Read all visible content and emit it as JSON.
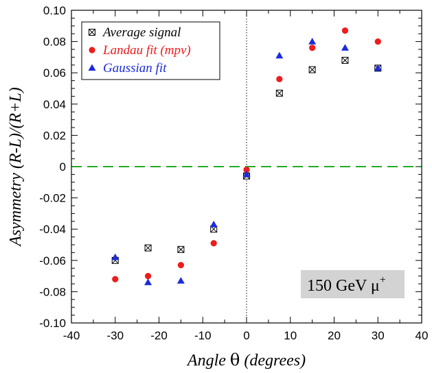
{
  "chart_data": {
    "type": "scatter",
    "xlabel_prefix": "Angle ",
    "xlabel_symbol": "θ",
    "xlabel_suffix": " (degrees)",
    "ylabel": "Asymmetry (R-L)/(R+L)",
    "xlim": [
      -40,
      40
    ],
    "ylim": [
      -0.1,
      0.1
    ],
    "x_ticks": [
      -40,
      -30,
      -20,
      -10,
      0,
      10,
      20,
      30,
      40
    ],
    "y_ticks": [
      -0.1,
      -0.08,
      -0.06,
      -0.04,
      -0.02,
      0,
      0.02,
      0.04,
      0.06,
      0.08,
      0.1
    ],
    "x_tick_labels": [
      "-40",
      "-30",
      "-20",
      "-10",
      "0",
      "10",
      "20",
      "30",
      "40"
    ],
    "y_tick_labels": [
      "-0.10",
      "-0.08",
      "-0.06",
      "-0.04",
      "-0.02",
      "0",
      "0.02",
      "0.04",
      "0.06",
      "0.08",
      "0.10"
    ],
    "grid": false,
    "legend_position": "top-left",
    "reference_lines": [
      {
        "orientation": "horizontal",
        "value": 0,
        "style": "dashed",
        "color": "#22aa22"
      },
      {
        "orientation": "vertical",
        "value": 0,
        "style": "dotted",
        "color": "#000000"
      }
    ],
    "annotation": {
      "prefix": "150 GeV ",
      "particle": "μ",
      "superscript": "+",
      "position": "bottom-right",
      "background": "#d3d3d3"
    },
    "series": [
      {
        "name": "Average signal",
        "marker": "crossed-square",
        "color": "#000000",
        "x": [
          -30,
          -22.5,
          -15,
          -7.5,
          0,
          7.5,
          15,
          22.5,
          30
        ],
        "y": [
          -0.06,
          -0.052,
          -0.053,
          -0.04,
          -0.006,
          0.047,
          0.062,
          0.068,
          0.063
        ]
      },
      {
        "name": "Landau fit (mpv)",
        "marker": "circle",
        "color": "#ee1c1c",
        "x": [
          -30,
          -22.5,
          -15,
          -7.5,
          0,
          7.5,
          15,
          22.5,
          30
        ],
        "y": [
          -0.072,
          -0.07,
          -0.063,
          -0.049,
          -0.002,
          0.056,
          0.076,
          0.087,
          0.08
        ]
      },
      {
        "name": "Gaussian fit",
        "marker": "triangle",
        "color": "#1c2bdc",
        "x": [
          -30,
          -22.5,
          -15,
          -7.5,
          0,
          7.5,
          15,
          22.5,
          30
        ],
        "y": [
          -0.058,
          -0.074,
          -0.073,
          -0.037,
          -0.005,
          0.071,
          0.08,
          0.076,
          0.063
        ]
      }
    ]
  }
}
